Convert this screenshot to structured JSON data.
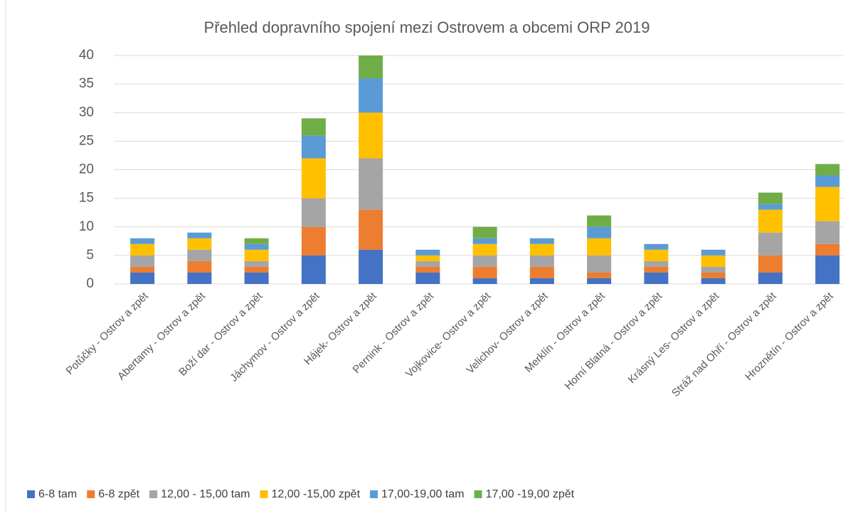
{
  "chart_data": {
    "type": "stacked_bar",
    "title": "Přehled dopravního spojení mezi Ostrovem a obcemi ORP  2019",
    "categories": [
      "Potůčky - Ostrov a zpět",
      "Abertamy - Ostrov a zpět",
      "Boží dar - Ostrov a zpět",
      "Jáchymov - Ostrov a zpět",
      "Hájek- Ostrov a zpět",
      "Pernink - Ostrov a zpět",
      "Vojkovice- Ostrov a zpět",
      "Velichov- Ostrov a zpět",
      "Merklín - Ostrov a zpět",
      "Horní Blatná - Ostrov a zpět",
      "Krásný Les- Ostrov a zpět",
      "Stráž nad Ohří - Ostrov a zpět",
      "Hroznětín - Ostrov a zpět"
    ],
    "series": [
      {
        "name": "6-8  tam",
        "color": "#4472c4",
        "values": [
          2,
          2,
          2,
          5,
          6,
          2,
          1,
          1,
          1,
          2,
          1,
          2,
          5
        ]
      },
      {
        "name": "6-8 zpět",
        "color": "#ed7d31",
        "values": [
          1,
          2,
          1,
          5,
          7,
          1,
          2,
          2,
          1,
          1,
          1,
          3,
          2
        ]
      },
      {
        "name": "12,00 - 15,00 tam",
        "color": "#a5a5a5",
        "values": [
          2,
          2,
          1,
          5,
          9,
          1,
          2,
          2,
          3,
          1,
          1,
          4,
          4
        ]
      },
      {
        "name": "12,00 -15,00 zpět",
        "color": "#ffc000",
        "values": [
          2,
          2,
          2,
          7,
          8,
          1,
          2,
          2,
          3,
          2,
          2,
          4,
          6
        ]
      },
      {
        "name": "17,00-19,00 tam",
        "color": "#5b9bd5",
        "values": [
          1,
          1,
          1,
          4,
          6,
          1,
          1,
          1,
          2,
          1,
          1,
          1,
          2
        ]
      },
      {
        "name": "17,00 -19,00 zpět",
        "color": "#70ad47",
        "values": [
          0,
          0,
          1,
          3,
          4,
          0,
          2,
          0,
          2,
          0,
          0,
          2,
          2
        ]
      }
    ],
    "ylim": [
      0,
      40
    ],
    "yticks": [
      0,
      5,
      10,
      15,
      20,
      25,
      30,
      35,
      40
    ],
    "grid": true,
    "legend": "bottom"
  }
}
